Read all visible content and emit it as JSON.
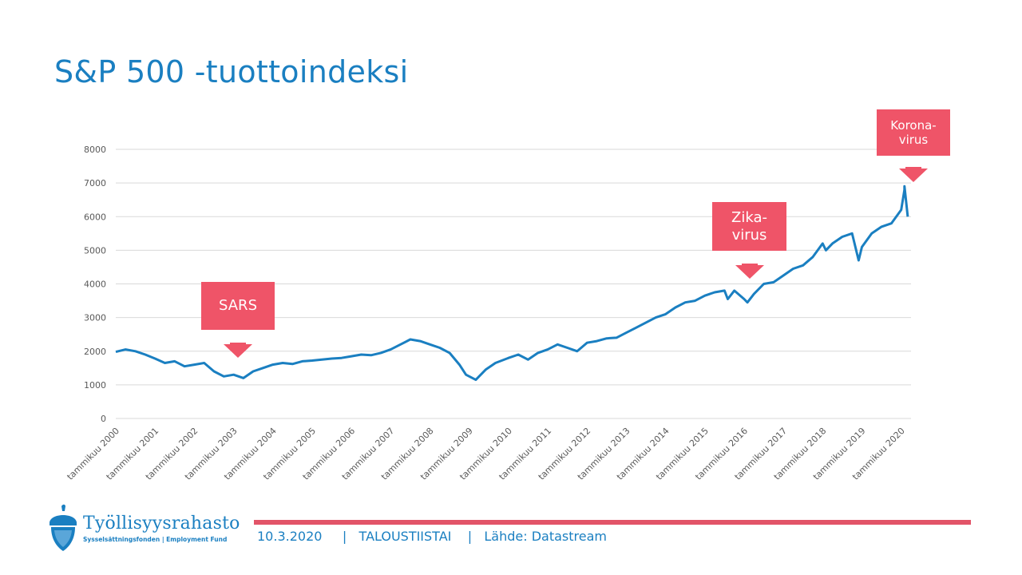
{
  "slide": {
    "title": "S&P 500 -tuottoindeksi"
  },
  "colors": {
    "title": "#1a7fc1",
    "line": "#1a7fc1",
    "callout": "#ef5468",
    "footer_bar": "#e25468",
    "grid": "#d9d9d9"
  },
  "callouts": [
    {
      "id": "sars",
      "lines": [
        "SARS"
      ],
      "date": "2003-04"
    },
    {
      "id": "zika",
      "lines": [
        "Zika-",
        "virus"
      ],
      "date": "2016-02"
    },
    {
      "id": "korona",
      "lines": [
        "Korona-",
        "virus"
      ],
      "date": "2020-02"
    }
  ],
  "chart_data": {
    "type": "line",
    "series": [
      {
        "x": [
          "2000-01",
          "2000-04",
          "2000-07",
          "2000-10",
          "2001-01",
          "2001-04",
          "2001-07",
          "2001-10",
          "2002-01",
          "2002-04",
          "2002-07",
          "2002-10",
          "2003-01",
          "2003-04",
          "2003-07",
          "2003-10",
          "2004-01",
          "2004-04",
          "2004-07",
          "2004-10",
          "2005-01",
          "2005-04",
          "2005-07",
          "2005-10",
          "2006-01",
          "2006-04",
          "2006-07",
          "2006-10",
          "2007-01",
          "2007-04",
          "2007-07",
          "2007-10",
          "2008-01",
          "2008-04",
          "2008-07",
          "2008-10",
          "2008-12",
          "2009-03",
          "2009-06",
          "2009-09",
          "2010-01",
          "2010-04",
          "2010-07",
          "2010-10",
          "2011-01",
          "2011-04",
          "2011-07",
          "2011-10",
          "2012-01",
          "2012-04",
          "2012-07",
          "2012-10",
          "2013-01",
          "2013-04",
          "2013-07",
          "2013-10",
          "2014-01",
          "2014-04",
          "2014-07",
          "2014-10",
          "2015-01",
          "2015-04",
          "2015-07",
          "2015-08",
          "2015-10",
          "2016-01",
          "2016-02",
          "2016-04",
          "2016-07",
          "2016-10",
          "2017-01",
          "2017-04",
          "2017-07",
          "2017-10",
          "2018-01",
          "2018-02",
          "2018-04",
          "2018-07",
          "2018-10",
          "2018-12",
          "2019-01",
          "2019-04",
          "2019-07",
          "2019-10",
          "2020-01",
          "2020-02",
          "2020-02",
          "2020-03"
        ],
        "y": [
          1980,
          2050,
          2000,
          1900,
          1780,
          1650,
          1700,
          1550,
          1600,
          1650,
          1400,
          1250,
          1300,
          1200,
          1400,
          1500,
          1600,
          1650,
          1620,
          1700,
          1720,
          1750,
          1780,
          1800,
          1850,
          1900,
          1880,
          1950,
          2050,
          2200,
          2350,
          2300,
          2200,
          2100,
          1950,
          1600,
          1300,
          1150,
          1450,
          1650,
          1800,
          1900,
          1750,
          1950,
          2050,
          2200,
          2100,
          2000,
          2250,
          2300,
          2380,
          2400,
          2550,
          2700,
          2850,
          3000,
          3100,
          3300,
          3450,
          3500,
          3650,
          3750,
          3800,
          3550,
          3800,
          3550,
          3450,
          3700,
          4000,
          4050,
          4250,
          4450,
          4550,
          4800,
          5200,
          5000,
          5200,
          5400,
          5500,
          4700,
          5100,
          5500,
          5700,
          5800,
          6200,
          6800,
          6900,
          6000
        ]
      }
    ],
    "xlabel": "",
    "ylabel": "",
    "ylim": [
      0,
      8000
    ],
    "yticks": [
      0,
      1000,
      2000,
      3000,
      4000,
      5000,
      6000,
      7000,
      8000
    ],
    "xticks": [
      "tammikuu 2000",
      "tammikuu 2001",
      "tammikuu 2002",
      "tammikuu 2003",
      "tammikuu 2004",
      "tammikuu 2005",
      "tammikuu 2006",
      "tammikuu 2007",
      "tammikuu 2008",
      "tammikuu 2009",
      "tammikuu 2010",
      "tammikuu 2011",
      "tammikuu 2012",
      "tammikuu 2013",
      "tammikuu 2014",
      "tammikuu 2015",
      "tammikuu 2016",
      "tammikuu 2017",
      "tammikuu 2018",
      "tammikuu 2019",
      "tammikuu 2020"
    ],
    "xtick_dates": [
      "2000-01",
      "2001-01",
      "2002-01",
      "2003-01",
      "2004-01",
      "2005-01",
      "2006-01",
      "2007-01",
      "2008-01",
      "2009-01",
      "2010-01",
      "2011-01",
      "2012-01",
      "2013-01",
      "2014-01",
      "2015-01",
      "2016-01",
      "2017-01",
      "2018-01",
      "2019-01",
      "2020-01"
    ],
    "grid": true,
    "legend": "none"
  },
  "footer": {
    "date": "10.3.2020",
    "separator": "|",
    "section": "TALOUSTIISTAI",
    "source": "Lähde: Datastream"
  },
  "logo": {
    "name": "Työllisyysrahasto",
    "subtitle": "Sysselsättningsfonden | Employment Fund",
    "icon": "acorn-icon"
  }
}
